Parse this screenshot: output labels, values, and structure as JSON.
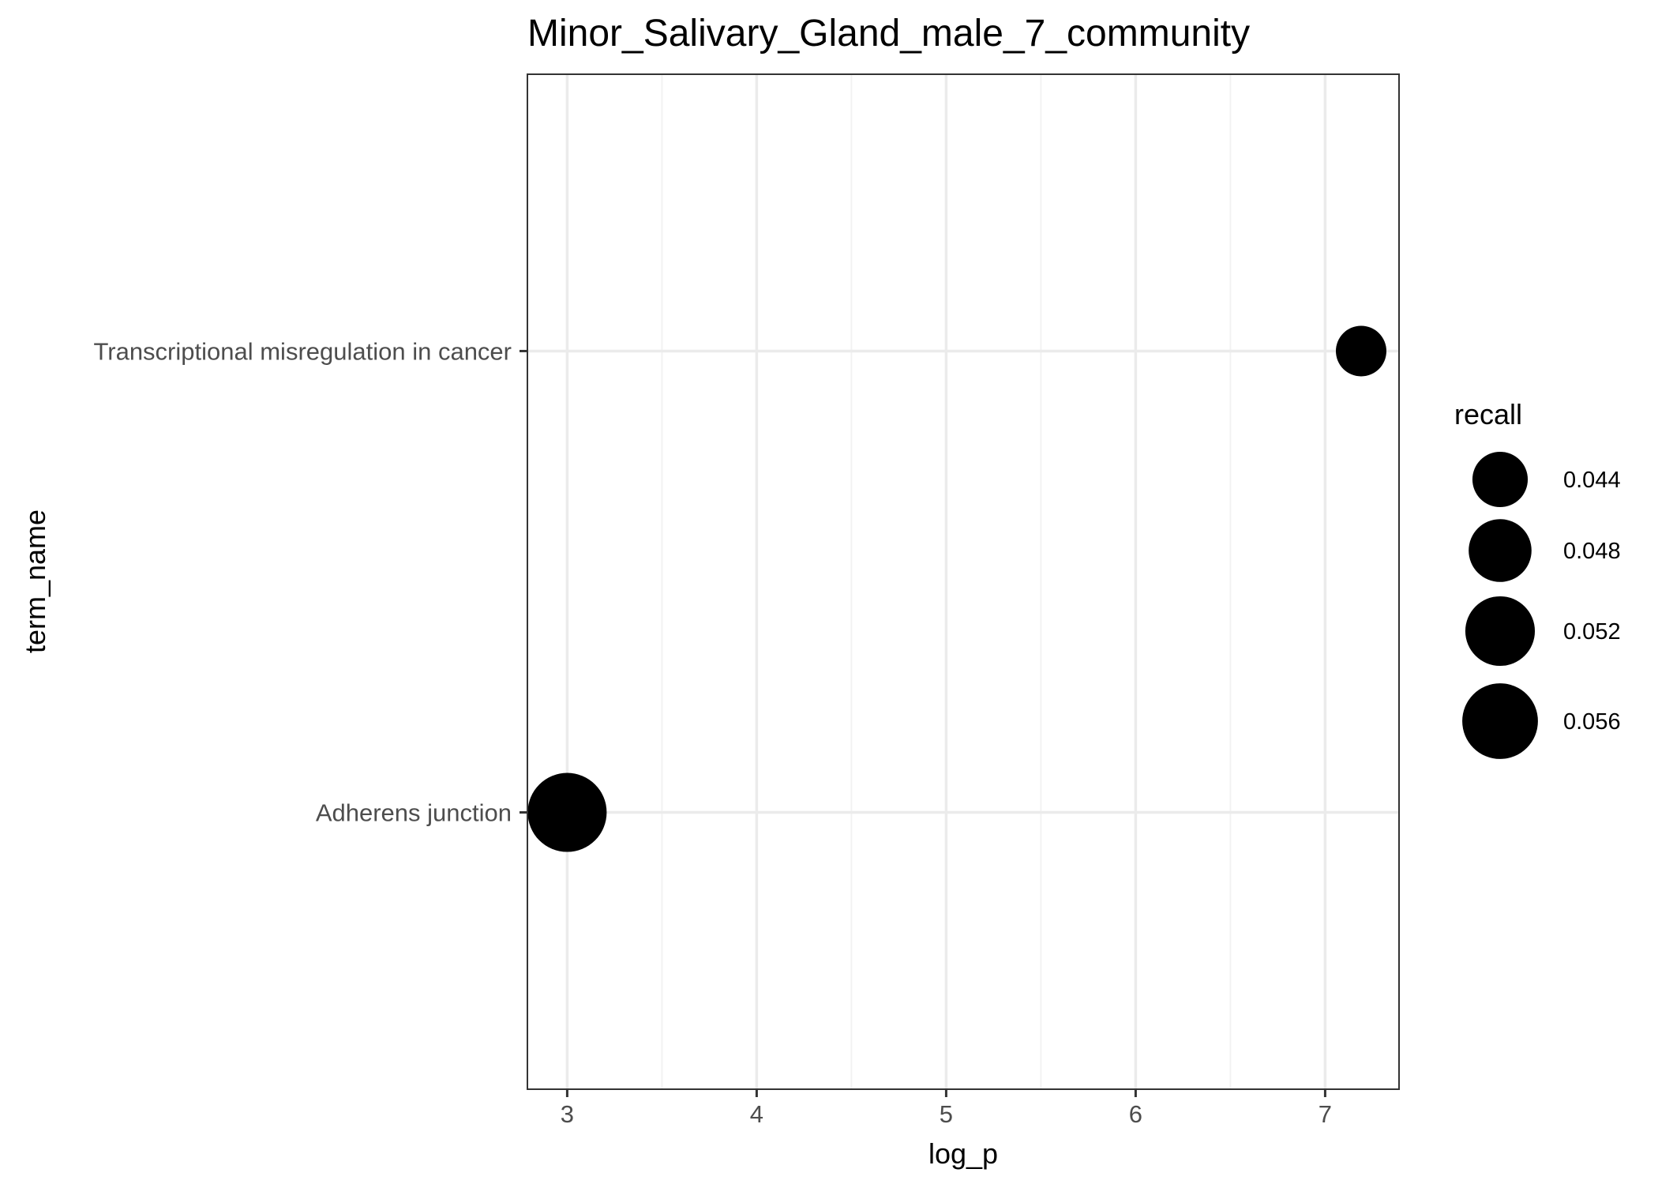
{
  "chart_data": {
    "type": "scatter",
    "title": "Minor_Salivary_Gland_male_7_community",
    "xlabel": "log_p",
    "ylabel": "term_name",
    "xlim": [
      2.79,
      7.39
    ],
    "x_ticks": [
      3,
      4,
      5,
      6,
      7
    ],
    "x_tick_labels": [
      "3",
      "4",
      "5",
      "6",
      "7"
    ],
    "y_categories": [
      "Adherens junction",
      "Transcriptional misregulation in cancer"
    ],
    "points": [
      {
        "term_name": "Transcriptional misregulation in cancer",
        "log_p": 7.19,
        "recall": 0.0417
      },
      {
        "term_name": "Adherens junction",
        "log_p": 3.0,
        "recall": 0.0583
      }
    ],
    "size_legend": {
      "title": "recall",
      "values": [
        0.044,
        0.048,
        0.052,
        0.056
      ],
      "labels": [
        "0.044",
        "0.048",
        "0.052",
        "0.056"
      ]
    },
    "grid": true,
    "legend_position": "right",
    "colors": {
      "point": "#000000",
      "grid_major": "#ebebeb",
      "grid_minor": "#f2f2f2",
      "panel_border": "#333333",
      "tick_text": "#4d4d4d"
    }
  }
}
